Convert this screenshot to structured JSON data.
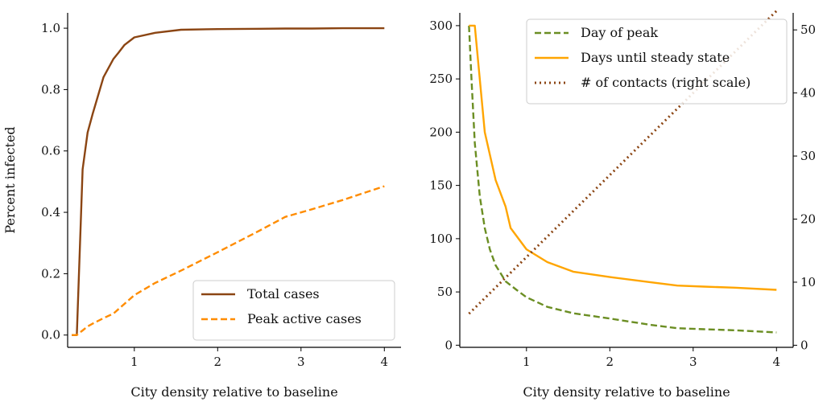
{
  "colors": {
    "total": "#8B4513",
    "peak_active": "#FF8C00",
    "day_of_peak": "#6B8E23",
    "steady": "#FFA500",
    "contacts": "#8B4513"
  },
  "chart_data": [
    {
      "type": "line",
      "xlabel": "City density relative to baseline",
      "ylabel": "Percent infected",
      "xlim": [
        0.2,
        4.2
      ],
      "ylim": [
        -0.04,
        1.05
      ],
      "xticks": [
        1,
        2,
        3,
        4
      ],
      "xtick_labels": [
        "1",
        "2",
        "3",
        "4"
      ],
      "yticks": [
        0.0,
        0.2,
        0.4,
        0.6,
        0.8,
        1.0
      ],
      "ytick_labels": [
        "0.0",
        "0.2",
        "0.4",
        "0.6",
        "0.8",
        "1.0"
      ],
      "legend_position": "lower-right",
      "series": [
        {
          "name": "Total cases",
          "style": "solid",
          "color_key": "total",
          "x": [
            0.25,
            0.31,
            0.38,
            0.44,
            0.5,
            0.63,
            0.75,
            0.81,
            0.88,
            1.0,
            1.25,
            1.56,
            2.0,
            2.5,
            2.81,
            3.13,
            3.5,
            4.0
          ],
          "y": [
            0.0,
            0.0,
            0.54,
            0.66,
            0.72,
            0.84,
            0.9,
            0.92,
            0.945,
            0.97,
            0.985,
            0.995,
            0.997,
            0.998,
            0.999,
            0.999,
            1.0,
            1.0
          ]
        },
        {
          "name": "Peak active cases",
          "style": "dashed",
          "color_key": "peak_active",
          "x": [
            0.25,
            0.31,
            0.38,
            0.44,
            0.5,
            0.63,
            0.75,
            1.0,
            1.25,
            1.56,
            2.0,
            2.5,
            2.81,
            3.13,
            3.5,
            4.0
          ],
          "y": [
            0.0,
            0.0,
            0.015,
            0.028,
            0.037,
            0.055,
            0.07,
            0.13,
            0.17,
            0.21,
            0.27,
            0.34,
            0.385,
            0.41,
            0.44,
            0.485
          ]
        }
      ]
    },
    {
      "type": "line",
      "xlabel": "City density relative to baseline",
      "ylabel": "",
      "xlim": [
        0.2,
        4.2
      ],
      "ylim": [
        -2,
        312
      ],
      "ylim_right": [
        -0.33,
        52.7
      ],
      "xticks": [
        1,
        2,
        3,
        4
      ],
      "xtick_labels": [
        "1",
        "2",
        "3",
        "4"
      ],
      "yticks": [
        0,
        50,
        100,
        150,
        200,
        250,
        300
      ],
      "ytick_labels": [
        "0",
        "50",
        "100",
        "150",
        "200",
        "250",
        "300"
      ],
      "yticks_right": [
        0,
        10,
        20,
        30,
        40,
        50
      ],
      "ytick_labels_right": [
        "0",
        "10",
        "20",
        "30",
        "40",
        "50"
      ],
      "legend_position": "upper-right",
      "series": [
        {
          "name": "Day of peak",
          "style": "dashed",
          "color_key": "day_of_peak",
          "axis": "left",
          "x": [
            0.31,
            0.34,
            0.38,
            0.44,
            0.5,
            0.56,
            0.63,
            0.75,
            0.88,
            1.0,
            1.25,
            1.56,
            2.0,
            2.5,
            2.81,
            3.13,
            3.5,
            4.0
          ],
          "y": [
            300,
            250,
            190,
            140,
            110,
            90,
            75,
            60,
            52,
            45,
            36,
            30,
            25,
            19,
            16,
            15,
            14,
            12
          ]
        },
        {
          "name": "Days until steady state",
          "style": "solid",
          "color_key": "steady",
          "axis": "left",
          "x": [
            0.31,
            0.38,
            0.5,
            0.63,
            0.75,
            0.81,
            1.0,
            1.25,
            1.56,
            2.0,
            2.5,
            2.81,
            3.13,
            3.5,
            4.0
          ],
          "y": [
            300,
            300,
            200,
            155,
            130,
            110,
            90,
            78,
            69,
            64,
            59,
            56,
            55,
            54,
            52
          ]
        },
        {
          "name": "# of contacts (right scale)",
          "style": "dotted",
          "color_key": "contacts",
          "axis": "right",
          "x": [
            0.31,
            4.0
          ],
          "y": [
            5,
            53
          ]
        }
      ]
    }
  ]
}
